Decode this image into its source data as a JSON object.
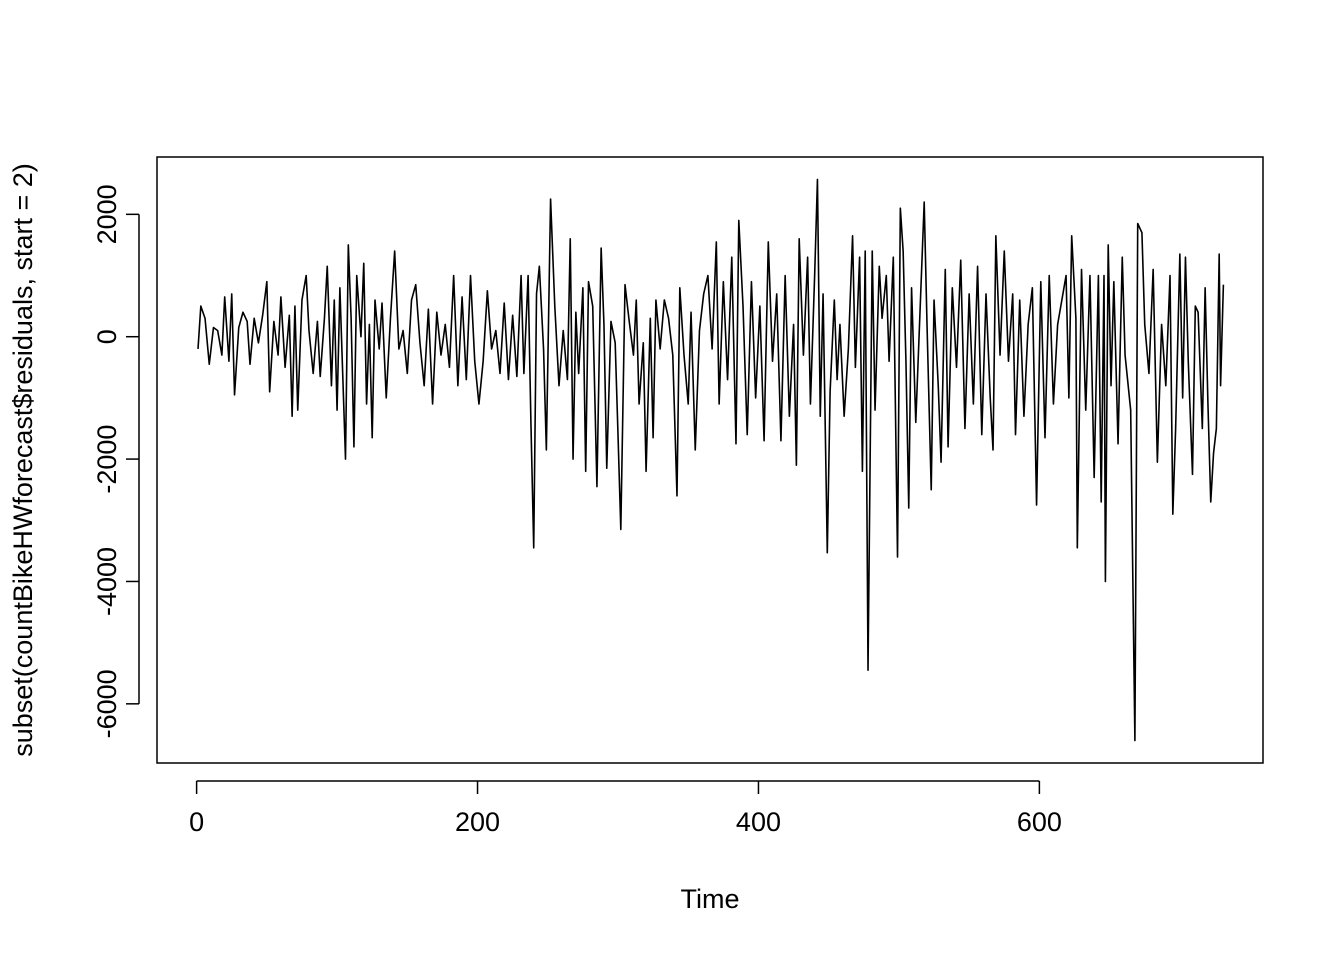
{
  "chart_data": {
    "type": "line",
    "x_label": "Time",
    "y_label": "subset(countBikeHWforecast$residuals, start = 2)",
    "color": "#000000",
    "xlim": [
      -28.2,
      759.2
    ],
    "xticks": [
      0,
      200,
      400,
      600
    ],
    "ylim": [
      -6967,
      2937
    ],
    "yticks": [
      -6000,
      -4000,
      -2000,
      0,
      2000
    ],
    "x": [
      1,
      3,
      6,
      9,
      12,
      15,
      18,
      20,
      23,
      25,
      27,
      30,
      33,
      36,
      38,
      41,
      44,
      47,
      50,
      52,
      55,
      58,
      60,
      63,
      66,
      68,
      70,
      72,
      75,
      78,
      80,
      83,
      86,
      88,
      91,
      93,
      96,
      98,
      100,
      102,
      104,
      106,
      108,
      110,
      112,
      114,
      117,
      119,
      121,
      123,
      125,
      127,
      130,
      132,
      135,
      138,
      141,
      144,
      147,
      150,
      153,
      156,
      159,
      162,
      165,
      168,
      171,
      174,
      177,
      180,
      183,
      186,
      189,
      192,
      195,
      198,
      201,
      204,
      207,
      210,
      213,
      216,
      219,
      222,
      225,
      228,
      231,
      233,
      236,
      238,
      240,
      242,
      244,
      247,
      249,
      252,
      255,
      258,
      261,
      264,
      266,
      268,
      270,
      272,
      275,
      277,
      279,
      282,
      285,
      288,
      290,
      292,
      295,
      298,
      300,
      302,
      305,
      308,
      311,
      313,
      315,
      318,
      320,
      323,
      325,
      327,
      330,
      333,
      336,
      339,
      342,
      344,
      347,
      350,
      352,
      355,
      358,
      361,
      364,
      367,
      370,
      372,
      375,
      378,
      381,
      384,
      386,
      389,
      392,
      395,
      398,
      401,
      404,
      407,
      410,
      413,
      416,
      419,
      422,
      425,
      427,
      429,
      432,
      435,
      437,
      440,
      442,
      444,
      446,
      449,
      451,
      454,
      456,
      458,
      461,
      464,
      467,
      469,
      472,
      474,
      476,
      478,
      481,
      483,
      486,
      488,
      491,
      493,
      496,
      499,
      501,
      503,
      505,
      507,
      509,
      512,
      515,
      518,
      520,
      523,
      525,
      528,
      530,
      533,
      535,
      538,
      541,
      544,
      547,
      550,
      553,
      556,
      559,
      562,
      565,
      567,
      569,
      572,
      575,
      578,
      581,
      583,
      586,
      589,
      592,
      595,
      598,
      601,
      604,
      607,
      610,
      613,
      616,
      619,
      621,
      623,
      626,
      627,
      630,
      633,
      636,
      639,
      642,
      644,
      646,
      647,
      649,
      651,
      653,
      656,
      659,
      661,
      665,
      668,
      670,
      673,
      675,
      678,
      681,
      684,
      687,
      690,
      693,
      695,
      697,
      700,
      702,
      704,
      706,
      709,
      711,
      713,
      716,
      718,
      720,
      722,
      724,
      726,
      728,
      729,
      731
    ],
    "values": [
      -200,
      500,
      300,
      -450,
      150,
      100,
      -300,
      650,
      -400,
      700,
      -950,
      150,
      400,
      250,
      -450,
      300,
      -100,
      350,
      900,
      -900,
      250,
      -300,
      650,
      -500,
      350,
      -1300,
      500,
      -1200,
      600,
      1000,
      100,
      -600,
      250,
      -650,
      300,
      1150,
      -800,
      600,
      -1200,
      800,
      -600,
      -2000,
      1500,
      300,
      -1800,
      1000,
      0,
      1200,
      -1100,
      200,
      -1650,
      600,
      -200,
      550,
      -1000,
      300,
      1400,
      -200,
      100,
      -600,
      600,
      850,
      -100,
      -800,
      450,
      -1100,
      400,
      -300,
      200,
      -500,
      1000,
      -800,
      650,
      -700,
      1000,
      -400,
      -1100,
      -400,
      750,
      -200,
      100,
      -600,
      550,
      -700,
      350,
      -650,
      1000,
      -600,
      1000,
      -1400,
      -3450,
      700,
      1150,
      -200,
      -1850,
      2250,
      500,
      -800,
      100,
      -700,
      1600,
      -2000,
      400,
      -600,
      800,
      -2200,
      900,
      500,
      -2450,
      1450,
      200,
      -2150,
      250,
      -100,
      -1600,
      -3150,
      850,
      250,
      -300,
      600,
      -1100,
      -100,
      -2200,
      300,
      -1650,
      600,
      -200,
      600,
      300,
      -300,
      -2600,
      800,
      -300,
      -1100,
      400,
      -1850,
      100,
      700,
      1000,
      -200,
      1550,
      -1100,
      900,
      -700,
      1300,
      -1750,
      1900,
      500,
      -1600,
      900,
      -1000,
      500,
      -1700,
      1550,
      -400,
      700,
      -1700,
      1000,
      -1300,
      200,
      -2100,
      1600,
      -300,
      1300,
      -1100,
      1000,
      2570,
      -1300,
      700,
      -3530,
      -900,
      600,
      -700,
      200,
      -1300,
      -200,
      1650,
      -500,
      1300,
      -2200,
      1400,
      -5450,
      1400,
      -1200,
      1150,
      300,
      1000,
      -400,
      1300,
      -3600,
      2100,
      1400,
      -400,
      -2800,
      800,
      -1400,
      400,
      2200,
      200,
      -2500,
      600,
      -800,
      -2050,
      1100,
      -1800,
      800,
      -500,
      1250,
      -1500,
      700,
      -1100,
      1150,
      -1600,
      700,
      -1000,
      -1850,
      1650,
      -300,
      1400,
      -400,
      700,
      -1600,
      600,
      -1300,
      200,
      800,
      -2750,
      900,
      -1650,
      1000,
      -1100,
      200,
      600,
      1000,
      -1000,
      1650,
      300,
      -3450,
      1100,
      -1200,
      1000,
      -2300,
      1000,
      -2700,
      1000,
      -4000,
      1500,
      -800,
      900,
      -1750,
      1300,
      -300,
      -1200,
      -6600,
      1850,
      1700,
      200,
      -600,
      1100,
      -2050,
      200,
      -800,
      1000,
      -2900,
      -1500,
      1350,
      -1000,
      1300,
      -400,
      -2250,
      500,
      400,
      -1500,
      800,
      -1100,
      -2700,
      -1900,
      -1500,
      1350,
      -800,
      850
    ]
  }
}
